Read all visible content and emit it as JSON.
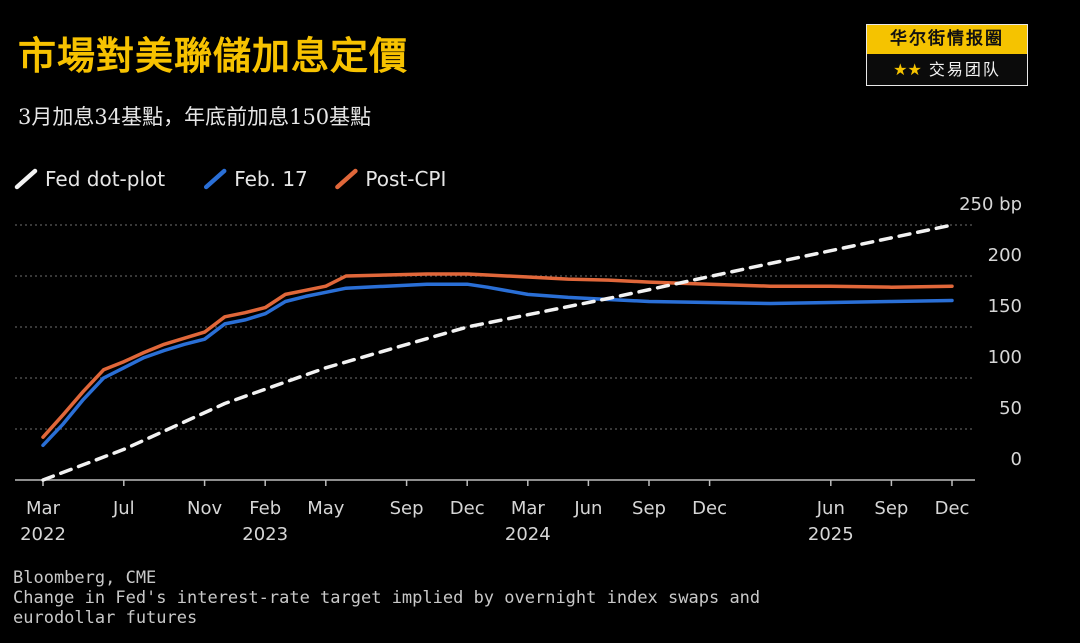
{
  "header": {
    "title": "市場對美聯儲加息定價",
    "subtitle": "3月加息34基點，年底前加息150基點"
  },
  "brand": {
    "name": "华尔街情报圈",
    "stars": "★★",
    "team": "交易团队",
    "accent": "#f5c300"
  },
  "footer": {
    "source": "Bloomberg, CME",
    "note": "Change in Fed's interest-rate target implied by overnight index swaps and\neurodollar futures"
  },
  "chart_data": {
    "type": "line",
    "title": "市場對美聯儲加息定價",
    "subtitle": "3月加息34基點，年底前加息150基點",
    "xlabel": "",
    "ylabel": "bp",
    "ylim": [
      0,
      250
    ],
    "xlim": [
      0,
      45
    ],
    "grid": true,
    "legend_position": "top-left",
    "y_ticks": [
      {
        "value": 0,
        "label": "0"
      },
      {
        "value": 50,
        "label": "50"
      },
      {
        "value": 100,
        "label": "100"
      },
      {
        "value": 150,
        "label": "150"
      },
      {
        "value": 200,
        "label": "200"
      },
      {
        "value": 250,
        "label": "250 bp"
      }
    ],
    "x_ticks": [
      {
        "value": 0,
        "label": "Mar",
        "year": "2022"
      },
      {
        "value": 4,
        "label": "Jul",
        "year": ""
      },
      {
        "value": 8,
        "label": "Nov",
        "year": ""
      },
      {
        "value": 11,
        "label": "Feb",
        "year": "2023"
      },
      {
        "value": 14,
        "label": "May",
        "year": ""
      },
      {
        "value": 18,
        "label": "Sep",
        "year": ""
      },
      {
        "value": 21,
        "label": "Dec",
        "year": ""
      },
      {
        "value": 24,
        "label": "Mar",
        "year": "2024"
      },
      {
        "value": 27,
        "label": "Jun",
        "year": ""
      },
      {
        "value": 30,
        "label": "Sep",
        "year": ""
      },
      {
        "value": 33,
        "label": "Dec",
        "year": ""
      },
      {
        "value": 39,
        "label": "Jun",
        "year": "2025"
      },
      {
        "value": 42,
        "label": "Sep",
        "year": ""
      },
      {
        "value": 45,
        "label": "Dec",
        "year": ""
      }
    ],
    "series": [
      {
        "name": "Fed dot-plot",
        "color": "#f2f2f2",
        "dashed": true,
        "x": [
          0,
          4,
          9,
          14,
          21,
          28,
          35,
          45
        ],
        "values": [
          0,
          30,
          75,
          110,
          150,
          178,
          208,
          250
        ]
      },
      {
        "name": "Feb. 17",
        "color": "#2a6fd6",
        "dashed": false,
        "x": [
          0,
          1,
          2,
          3,
          4,
          5,
          6,
          7,
          8,
          9,
          10,
          11,
          12,
          13,
          14,
          15,
          17,
          19,
          21,
          22,
          24,
          26,
          28,
          30,
          33,
          36,
          39,
          42,
          45
        ],
        "values": [
          34,
          55,
          79,
          100,
          110,
          120,
          127,
          133,
          138,
          153,
          157,
          163,
          175,
          180,
          184,
          188,
          190,
          192,
          192,
          189,
          182,
          179,
          177,
          175,
          174,
          173,
          174,
          175,
          176
        ]
      },
      {
        "name": "Post-CPI",
        "color": "#e0673a",
        "dashed": false,
        "x": [
          0,
          1,
          2,
          3,
          4,
          5,
          6,
          7,
          8,
          9,
          10,
          11,
          12,
          13,
          14,
          15,
          17,
          19,
          21,
          22,
          24,
          26,
          28,
          30,
          33,
          36,
          39,
          42,
          45
        ],
        "values": [
          42,
          64,
          87,
          108,
          116,
          125,
          133,
          139,
          145,
          160,
          164,
          169,
          182,
          186,
          190,
          200,
          201,
          202,
          202,
          201,
          199,
          197,
          196,
          194,
          192,
          190,
          190,
          189,
          190
        ]
      }
    ],
    "source": "Bloomberg, CME",
    "note": "Change in Fed's interest-rate target implied by overnight index swaps and eurodollar futures"
  }
}
